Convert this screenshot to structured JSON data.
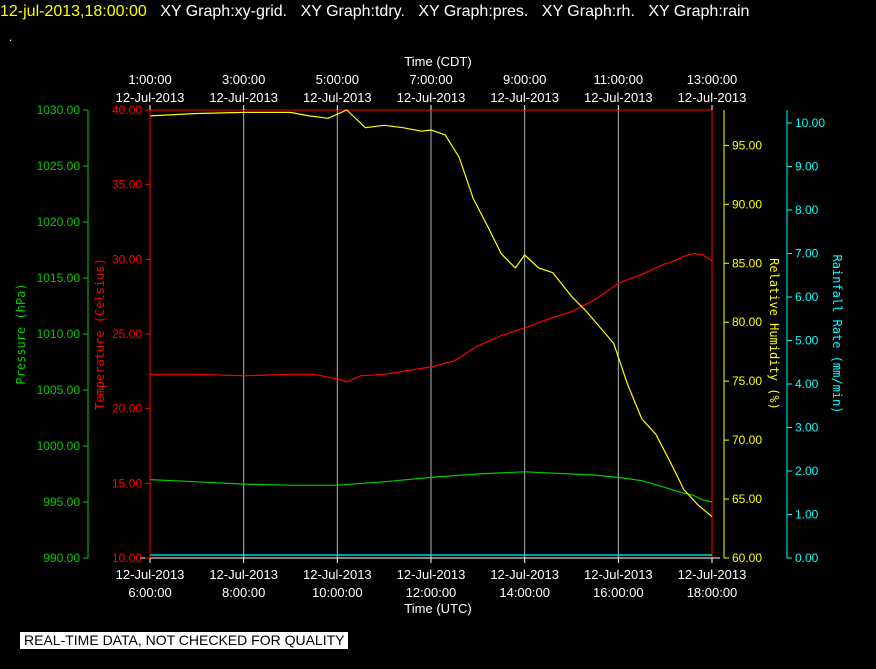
{
  "header": {
    "datetime": "12-jul-2013,18:00:00",
    "graphs": [
      "XY Graph:xy-grid.",
      "XY Graph:tdry.",
      "XY Graph:pres.",
      "XY Graph:rh.",
      "XY Graph:rain"
    ],
    "dot": "."
  },
  "footer": {
    "quality_note": "REAL-TIME DATA, NOT CHECKED FOR QUALITY"
  },
  "colors": {
    "background": "#000000",
    "header_date": "#ffff00",
    "header_text": "#ffffff",
    "temperature": "#ff0000",
    "pressure": "#00cc00",
    "humidity": "#ffff00",
    "rain": "#00ffff",
    "grid": "#a8b8b8",
    "frame": "#ff0000"
  },
  "chart_data": {
    "type": "line",
    "x_top": {
      "label": "Time (CDT)",
      "ticks": [
        [
          "1:00:00",
          "12-Jul-2013"
        ],
        [
          "3:00:00",
          "12-Jul-2013"
        ],
        [
          "5:00:00",
          "12-Jul-2013"
        ],
        [
          "7:00:00",
          "12-Jul-2013"
        ],
        [
          "9:00:00",
          "12-Jul-2013"
        ],
        [
          "11:00:00",
          "12-Jul-2013"
        ],
        [
          "13:00:00",
          "12-Jul-2013"
        ]
      ]
    },
    "x_bottom": {
      "label": "Time (UTC)",
      "range": [
        6.0,
        18.0
      ],
      "tick_hours": [
        6,
        8,
        10,
        12,
        14,
        16,
        18
      ],
      "ticks": [
        [
          "12-Jul-2013",
          "6:00:00"
        ],
        [
          "12-Jul-2013",
          "8:00:00"
        ],
        [
          "12-Jul-2013",
          "10:00:00"
        ],
        [
          "12-Jul-2013",
          "12:00:00"
        ],
        [
          "12-Jul-2013",
          "14:00:00"
        ],
        [
          "12-Jul-2013",
          "16:00:00"
        ],
        [
          "12-Jul-2013",
          "18:00:00"
        ]
      ]
    },
    "axes": {
      "pressure": {
        "label": "Pressure (hPa)",
        "range": [
          990,
          1030
        ],
        "ticks": [
          "990.00",
          "995.00",
          "1000.00",
          "1005.00",
          "1010.00",
          "1015.00",
          "1020.00",
          "1025.00",
          "1030.00"
        ]
      },
      "temperature": {
        "label": "Temperature (Celsius)",
        "range": [
          10,
          40
        ],
        "ticks": [
          "10.00",
          "15.00",
          "20.00",
          "25.00",
          "30.00",
          "35.00",
          "40.00"
        ]
      },
      "humidity": {
        "label": "Relative Humidity (%)",
        "range": [
          60,
          98
        ],
        "ticks": [
          "60.00",
          "65.00",
          "70.00",
          "75.00",
          "80.00",
          "85.00",
          "90.00",
          "95.00"
        ]
      },
      "rain": {
        "label": "Rainfall Rate (mm/min)",
        "range": [
          0,
          10.3
        ],
        "ticks": [
          "0.00",
          "1.00",
          "2.00",
          "3.00",
          "4.00",
          "5.00",
          "6.00",
          "7.00",
          "8.00",
          "9.00",
          "10.00"
        ]
      }
    },
    "series": [
      {
        "name": "tdry",
        "axis": "temperature",
        "x": [
          6.0,
          7.0,
          8.0,
          9.0,
          9.5,
          10.0,
          10.2,
          10.5,
          11.0,
          12.0,
          12.5,
          13.0,
          13.5,
          14.0,
          14.5,
          15.0,
          15.5,
          16.0,
          16.5,
          17.0,
          17.2,
          17.4,
          17.6,
          17.8,
          18.0
        ],
        "y": [
          22.3,
          22.3,
          22.2,
          22.3,
          22.3,
          22.0,
          21.8,
          22.2,
          22.3,
          22.8,
          23.2,
          24.2,
          24.9,
          25.4,
          26.0,
          26.5,
          27.3,
          28.4,
          29.0,
          29.7,
          29.9,
          30.2,
          30.4,
          30.3,
          29.9
        ]
      },
      {
        "name": "pres",
        "axis": "pressure",
        "x": [
          6.0,
          7.0,
          8.0,
          9.0,
          10.0,
          11.0,
          12.0,
          13.0,
          14.0,
          15.0,
          15.5,
          16.0,
          16.5,
          17.0,
          17.3,
          17.6,
          17.8,
          18.0
        ],
        "y": [
          997.0,
          996.8,
          996.6,
          996.5,
          996.5,
          996.8,
          997.2,
          997.5,
          997.7,
          997.5,
          997.4,
          997.2,
          996.9,
          996.3,
          995.9,
          995.6,
          995.2,
          995.0
        ]
      },
      {
        "name": "rh",
        "axis": "humidity",
        "x": [
          6.0,
          7.0,
          8.0,
          9.0,
          9.4,
          9.8,
          10.2,
          10.6,
          11.0,
          11.4,
          11.8,
          12.0,
          12.3,
          12.6,
          12.9,
          13.2,
          13.5,
          13.8,
          14.0,
          14.3,
          14.6,
          15.0,
          15.3,
          15.6,
          15.9,
          16.2,
          16.5,
          16.8,
          17.1,
          17.4,
          17.7,
          18.0
        ],
        "y": [
          97.5,
          97.7,
          97.8,
          97.8,
          97.5,
          97.3,
          98.0,
          96.5,
          96.7,
          96.5,
          96.2,
          96.3,
          95.9,
          94.0,
          90.5,
          88.2,
          85.8,
          84.6,
          85.7,
          84.6,
          84.2,
          82.2,
          81.0,
          79.6,
          78.2,
          74.7,
          71.8,
          70.5,
          68.2,
          65.8,
          64.5,
          63.5
        ]
      },
      {
        "name": "rain",
        "axis": "rain",
        "x": [
          6.0,
          18.0
        ],
        "y": [
          0.0,
          0.0
        ]
      }
    ]
  }
}
